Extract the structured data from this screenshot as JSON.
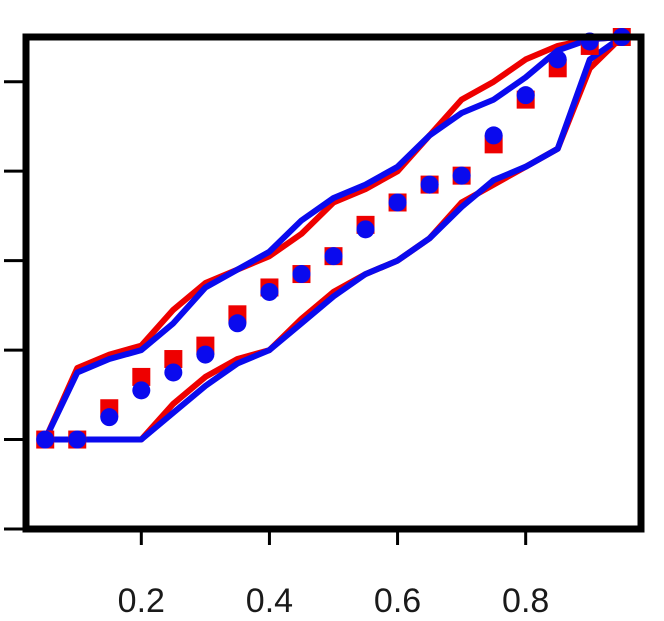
{
  "chart_data": {
    "type": "scatter",
    "title": "",
    "xlabel": "",
    "ylabel": "",
    "xlim": [
      0.02,
      0.98
    ],
    "ylim": [
      -0.1,
      1.0
    ],
    "x_ticks": [
      0.2,
      0.4,
      0.6,
      0.8
    ],
    "x_tick_labels": [
      "0.2",
      "0.4",
      "0.6",
      "0.8"
    ],
    "y_ticks": [
      -0.1,
      0.1,
      0.3,
      0.5,
      0.7,
      0.9
    ],
    "y_tick_labels": [
      "",
      "",
      "",
      "",
      "",
      ""
    ],
    "grid": false,
    "series": [
      {
        "kind": "points",
        "marker": "square",
        "color": "#ee0000",
        "x": [
          0.05,
          0.1,
          0.15,
          0.2,
          0.25,
          0.3,
          0.35,
          0.4,
          0.45,
          0.5,
          0.55,
          0.6,
          0.65,
          0.7,
          0.75,
          0.8,
          0.85,
          0.9,
          0.95
        ],
        "y": [
          0.1,
          0.1,
          0.17,
          0.24,
          0.28,
          0.31,
          0.38,
          0.44,
          0.47,
          0.51,
          0.58,
          0.63,
          0.67,
          0.69,
          0.76,
          0.86,
          0.93,
          0.98,
          1.0
        ]
      },
      {
        "kind": "points",
        "marker": "circle",
        "color": "#0a0aee",
        "x": [
          0.05,
          0.1,
          0.15,
          0.2,
          0.25,
          0.3,
          0.35,
          0.4,
          0.45,
          0.5,
          0.55,
          0.6,
          0.65,
          0.7,
          0.75,
          0.8,
          0.85,
          0.9,
          0.95
        ],
        "y": [
          0.1,
          0.1,
          0.15,
          0.21,
          0.25,
          0.29,
          0.36,
          0.43,
          0.47,
          0.51,
          0.57,
          0.63,
          0.67,
          0.69,
          0.78,
          0.87,
          0.95,
          0.99,
          1.0
        ]
      },
      {
        "kind": "line",
        "color": "#ee0000",
        "x": [
          0.05,
          0.1,
          0.15,
          0.2,
          0.25,
          0.3,
          0.35,
          0.4,
          0.45,
          0.5,
          0.55,
          0.6,
          0.65,
          0.7,
          0.75,
          0.8,
          0.85,
          0.9,
          0.95
        ],
        "y": [
          0.1,
          0.26,
          0.29,
          0.31,
          0.39,
          0.45,
          0.48,
          0.51,
          0.56,
          0.63,
          0.66,
          0.7,
          0.78,
          0.86,
          0.9,
          0.95,
          0.98,
          0.995,
          1.0
        ]
      },
      {
        "kind": "line",
        "color": "#ee0000",
        "x": [
          0.05,
          0.1,
          0.15,
          0.2,
          0.25,
          0.3,
          0.35,
          0.4,
          0.45,
          0.5,
          0.55,
          0.6,
          0.65,
          0.7,
          0.75,
          0.8,
          0.85,
          0.9,
          0.95
        ],
        "y": [
          0.1,
          0.1,
          0.1,
          0.1,
          0.18,
          0.24,
          0.28,
          0.3,
          0.37,
          0.43,
          0.47,
          0.5,
          0.55,
          0.63,
          0.67,
          0.71,
          0.75,
          0.93,
          1.0
        ]
      },
      {
        "kind": "line",
        "color": "#0a0aee",
        "x": [
          0.05,
          0.1,
          0.15,
          0.2,
          0.25,
          0.3,
          0.35,
          0.4,
          0.45,
          0.5,
          0.55,
          0.6,
          0.65,
          0.7,
          0.75,
          0.8,
          0.85,
          0.9,
          0.95
        ],
        "y": [
          0.1,
          0.25,
          0.28,
          0.3,
          0.36,
          0.44,
          0.48,
          0.52,
          0.59,
          0.64,
          0.67,
          0.71,
          0.78,
          0.83,
          0.86,
          0.91,
          0.97,
          0.995,
          1.0
        ]
      },
      {
        "kind": "line",
        "color": "#0a0aee",
        "x": [
          0.05,
          0.1,
          0.15,
          0.2,
          0.25,
          0.3,
          0.35,
          0.4,
          0.45,
          0.5,
          0.55,
          0.6,
          0.65,
          0.7,
          0.75,
          0.8,
          0.85,
          0.9,
          0.95
        ],
        "y": [
          0.1,
          0.1,
          0.1,
          0.1,
          0.16,
          0.22,
          0.27,
          0.3,
          0.36,
          0.42,
          0.47,
          0.5,
          0.55,
          0.62,
          0.68,
          0.71,
          0.75,
          0.95,
          1.0
        ]
      }
    ]
  }
}
